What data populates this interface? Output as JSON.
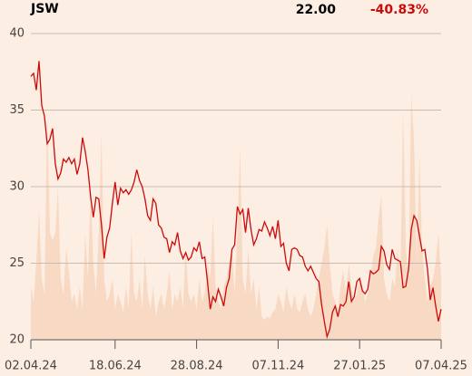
{
  "chart_data": {
    "type": "line",
    "title": "JSW",
    "last_price": "22.00",
    "change": "-40.83%",
    "categories": [
      "02.04.24",
      null,
      null,
      null,
      null,
      null,
      null,
      null,
      null,
      null,
      null,
      null,
      null,
      null,
      null,
      null,
      null,
      null,
      null,
      null,
      null,
      null,
      null,
      null,
      null,
      null,
      null,
      null,
      null,
      null,
      null,
      "18.06.24",
      null,
      null,
      null,
      null,
      null,
      null,
      null,
      null,
      null,
      null,
      null,
      null,
      null,
      null,
      null,
      null,
      null,
      null,
      null,
      null,
      null,
      null,
      null,
      null,
      null,
      null,
      null,
      null,
      null,
      "28.08.24",
      null,
      null,
      null,
      null,
      null,
      null,
      null,
      null,
      null,
      null,
      null,
      null,
      null,
      null,
      null,
      null,
      null,
      null,
      null,
      null,
      null,
      null,
      null,
      null,
      null,
      null,
      null,
      null,
      null,
      "07.11.24",
      null,
      null,
      null,
      null,
      null,
      null,
      null,
      null,
      null,
      null,
      null,
      null,
      null,
      null,
      null,
      null,
      null,
      null,
      null,
      null,
      null,
      null,
      null,
      null,
      null,
      null,
      null,
      null,
      null,
      "27.01.25",
      null,
      null,
      null,
      null,
      null,
      null,
      null,
      null,
      null,
      null,
      null,
      null,
      null,
      null,
      null,
      null,
      null,
      null,
      null,
      null,
      null,
      null,
      null,
      null,
      null,
      null,
      null,
      null,
      null,
      "07.04.25"
    ],
    "series": [
      {
        "type": "line",
        "color": "#cc0a0a",
        "values": [
          37.2,
          37.4,
          36.3,
          38.2,
          35.3,
          34.6,
          32.8,
          33.1,
          33.8,
          31.5,
          30.5,
          30.9,
          31.8,
          31.6,
          31.9,
          31.5,
          31.8,
          30.8,
          31.5,
          33.2,
          32.3,
          31.1,
          29.3,
          28,
          29.3,
          29.2,
          27.5,
          25.3,
          26.7,
          27.3,
          28.9,
          30.3,
          28.8,
          29.9,
          29.6,
          29.8,
          29.5,
          29.8,
          30.3,
          31.1,
          30.4,
          30,
          29.2,
          28.1,
          27.8,
          29.2,
          28.9,
          27.5,
          27.3,
          26.7,
          26.6,
          25.7,
          26.4,
          26.2,
          27,
          25.8,
          25.3,
          25.7,
          25.2,
          25.4,
          26,
          25.8,
          26.4,
          25.3,
          25.4,
          23.8,
          22,
          22.8,
          22.5,
          23.3,
          22.8,
          22.2,
          23.4,
          24,
          25.9,
          26.2,
          28.7,
          28.2,
          28.5,
          27,
          28.6,
          27.2,
          26.2,
          26.6,
          27.2,
          27.1,
          27.7,
          27.3,
          26.8,
          27.4,
          26.6,
          27.8,
          26.1,
          26.3,
          25,
          24.5,
          25.9,
          26,
          25.9,
          25.5,
          25.4,
          24.8,
          24.5,
          24.8,
          24.4,
          24,
          23.8,
          22.3,
          21.2,
          20.2,
          20.7,
          21.8,
          22.2,
          21.5,
          22.3,
          22.2,
          22.5,
          23.8,
          22.5,
          22.8,
          23.8,
          24,
          23.2,
          23,
          23.3,
          24.5,
          24.3,
          24.4,
          24.6,
          26.1,
          25.8,
          24.9,
          24.6,
          25.9,
          25.3,
          25.2,
          25.1,
          23.4,
          23.5,
          24.6,
          27.2,
          28.1,
          27.8,
          26.8,
          25.8,
          25.9,
          24.6,
          22.6,
          23.4,
          22.2,
          21.2,
          22.0
        ]
      },
      {
        "type": "area",
        "color": "#f8d9c4",
        "values": [
          23.5,
          22.5,
          25,
          28.5,
          24,
          23,
          34.5,
          27,
          26.5,
          27,
          30,
          24,
          23,
          26,
          24.5,
          22.5,
          23,
          22,
          23.5,
          22,
          27,
          24,
          30,
          25,
          23,
          27,
          33.5,
          24,
          22.5,
          23,
          24,
          22,
          23,
          22.5,
          21.8,
          23.5,
          22,
          27,
          23,
          22.5,
          24,
          22,
          25.5,
          23,
          22,
          23.5,
          21.5,
          22.5,
          23,
          22,
          23,
          24.5,
          22,
          23,
          22.5,
          23.5,
          22,
          26,
          23,
          22.5,
          23,
          22,
          24,
          22.5,
          23,
          25,
          24,
          28,
          23.5,
          22.5,
          22,
          23.5,
          24,
          25,
          26,
          23,
          27,
          32.5,
          24,
          23,
          26,
          23,
          24,
          22,
          23.5,
          21.5,
          21.3,
          21.5,
          21.4,
          21.8,
          22,
          23,
          22.5,
          21.8,
          23.5,
          22.5,
          22,
          23,
          22,
          21.8,
          22.5,
          23,
          22,
          21.5,
          22,
          23,
          24,
          25,
          26,
          27.5,
          25,
          23,
          22.5,
          22,
          23.5,
          24.5,
          23,
          25,
          23.5,
          22.5,
          23,
          24,
          23.5,
          22.5,
          23,
          24,
          25.5,
          26,
          28,
          29.5,
          24,
          23,
          22.5,
          24,
          23.5,
          26,
          24,
          35,
          26,
          24,
          36,
          33,
          25,
          32,
          26,
          24,
          22.5,
          23.5,
          24,
          25,
          27,
          24
        ]
      }
    ],
    "ylim": [
      20,
      40
    ],
    "yticks": [
      20,
      25,
      30,
      35,
      40
    ],
    "grid": true
  }
}
